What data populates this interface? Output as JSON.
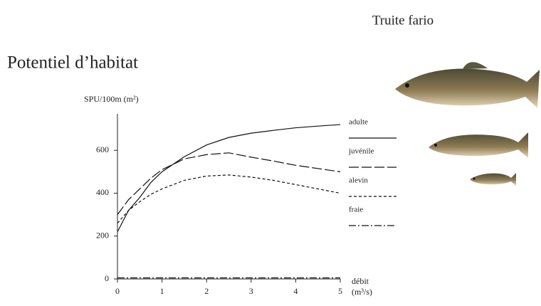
{
  "chart_data": {
    "type": "line",
    "header": "Truite fario",
    "title": "Potentiel d’habitat",
    "ylabel": "SPU/100m (m²)",
    "xlabel": [
      "débit",
      "(m³/s)"
    ],
    "x": [
      0,
      0.25,
      0.5,
      0.75,
      1,
      1.5,
      2,
      2.5,
      3,
      3.5,
      4,
      4.5,
      5
    ],
    "series": [
      {
        "name": "adulte",
        "color": "#111111",
        "dash": "none",
        "values": [
          220,
          320,
          380,
          450,
          500,
          570,
          625,
          660,
          680,
          693,
          705,
          713,
          720
        ]
      },
      {
        "name": "juvénile",
        "color": "#111111",
        "dash": "14,4",
        "values": [
          300,
          370,
          420,
          470,
          510,
          560,
          580,
          588,
          568,
          550,
          530,
          515,
          500
        ]
      },
      {
        "name": "alevin",
        "color": "#111111",
        "dash": "4,3",
        "values": [
          260,
          320,
          360,
          395,
          420,
          460,
          480,
          485,
          475,
          460,
          440,
          420,
          400
        ]
      },
      {
        "name": "fraie",
        "color": "#111111",
        "dash": "10,3,2,3",
        "values": [
          5,
          5,
          5,
          5,
          5,
          5,
          5,
          5,
          5,
          5,
          5,
          5,
          5
        ]
      }
    ],
    "xlim": [
      0,
      5
    ],
    "xticks": [
      0,
      1,
      2,
      3,
      4,
      5
    ],
    "ylim": [
      0,
      770
    ],
    "yticks": [
      0,
      200,
      400,
      600
    ]
  }
}
